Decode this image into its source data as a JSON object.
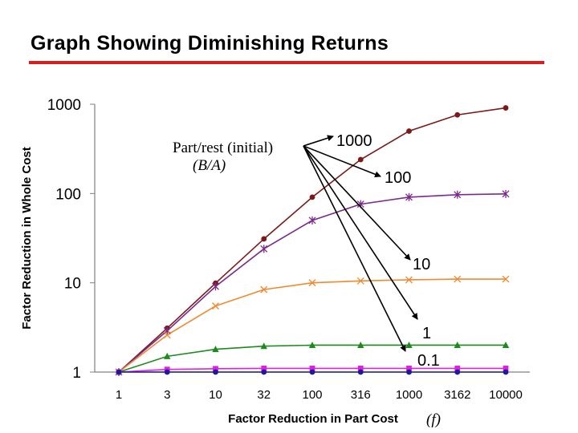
{
  "slide": {
    "title": "Graph Showing Diminishing Returns"
  },
  "chart_data": {
    "type": "line",
    "x": [
      1,
      3,
      10,
      32,
      100,
      316,
      1000,
      3162,
      10000
    ],
    "x_tick_labels": [
      "1",
      "3",
      "10",
      "32",
      "100",
      "316",
      "1000",
      "3162",
      "10000"
    ],
    "xlabel": "Factor Reduction in Part Cost",
    "xlabel_symbol": "(f)",
    "ylabel": "Factor Reduction in Whole Cost",
    "y_ticks": [
      1,
      10,
      100,
      1000
    ],
    "y_tick_labels": [
      "1",
      "10",
      "100",
      "1000"
    ],
    "ylim": [
      1,
      1000
    ],
    "y_scale": "log",
    "x_scale": "log",
    "grid": false,
    "series": [
      {
        "name": "1000",
        "color": "#7b1a1a",
        "marker": "circle",
        "values": [
          1,
          3.1,
          9.9,
          31,
          91,
          240,
          500,
          760,
          910
        ]
      },
      {
        "name": "100",
        "color": "#7a2b8c",
        "marker": "star",
        "values": [
          1,
          2.9,
          9.1,
          24,
          50,
          76,
          91,
          97,
          99
        ]
      },
      {
        "name": "10",
        "color": "#f08a30",
        "marker": "x",
        "values": [
          1,
          2.6,
          5.5,
          8.4,
          10,
          10.5,
          10.8,
          11,
          11
        ]
      },
      {
        "name": "1",
        "color": "#1e8a1e",
        "marker": "triangle",
        "values": [
          1,
          1.5,
          1.8,
          1.95,
          2,
          2,
          2,
          2,
          2
        ]
      },
      {
        "name": "0.1",
        "color": "#e020e0",
        "marker": "square",
        "values": [
          1,
          1.07,
          1.09,
          1.1,
          1.1,
          1.1,
          1.1,
          1.1,
          1.1
        ]
      },
      {
        "name": "",
        "color": "#1a1a9a",
        "marker": "circle",
        "values": [
          1,
          1,
          1,
          1,
          1,
          1,
          1,
          1,
          1
        ]
      }
    ],
    "annotation": {
      "line1": "Part/rest (initial)",
      "line2": "(B/A)"
    }
  }
}
